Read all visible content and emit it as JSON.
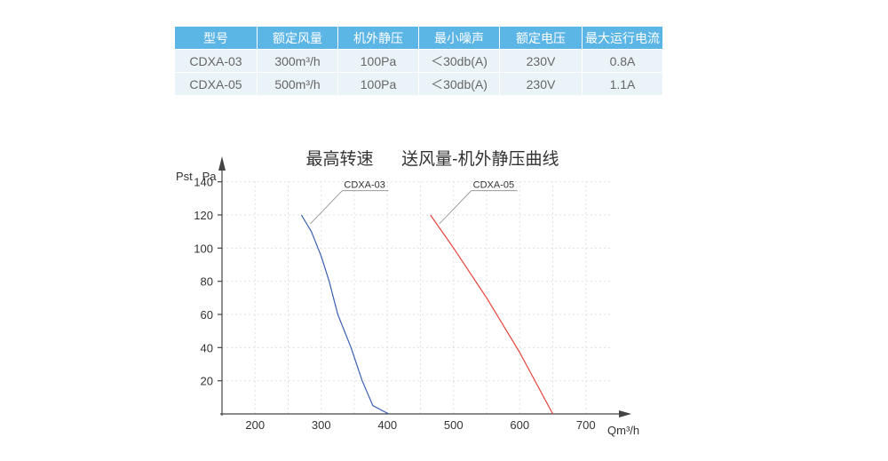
{
  "table": {
    "headers": [
      "型号",
      "额定风量",
      "机外静压",
      "最小噪声",
      "额定电压",
      "最大运行电流"
    ],
    "rows": [
      [
        "CDXA-03",
        "300m³/h",
        "100Pa",
        "＜30db(A)",
        "230V",
        "0.8A"
      ],
      [
        "CDXA-05",
        "500m³/h",
        "100Pa",
        "＜30db(A)",
        "230V",
        "1.1A"
      ]
    ]
  },
  "colors": {
    "header_bg": "#5bb5e5",
    "row_bg": "#eaf4f8",
    "series_03": "#3a5fb0",
    "series_05": "#e8413a"
  },
  "chart_data": {
    "type": "line",
    "title": "最高转速      送风量-机外静压曲线",
    "ylabel": "Pst   Pa",
    "xlabel": "Qm³/h",
    "xlim": [
      150,
      750
    ],
    "ylim": [
      0,
      150
    ],
    "xticks": [
      200,
      300,
      400,
      500,
      600,
      700
    ],
    "yticks": [
      20,
      40,
      60,
      80,
      100,
      120,
      140
    ],
    "grid": true,
    "series": [
      {
        "name": "CDXA-03",
        "color": "#3a5fb0",
        "points": [
          [
            270,
            120
          ],
          [
            285,
            110
          ],
          [
            300,
            95
          ],
          [
            312,
            80
          ],
          [
            325,
            60
          ],
          [
            345,
            40
          ],
          [
            362,
            20
          ],
          [
            378,
            5
          ],
          [
            402,
            0
          ]
        ]
      },
      {
        "name": "CDXA-05",
        "color": "#e8413a",
        "points": [
          [
            465,
            120
          ],
          [
            500,
            100
          ],
          [
            550,
            70
          ],
          [
            600,
            37
          ],
          [
            650,
            0
          ]
        ]
      }
    ]
  }
}
